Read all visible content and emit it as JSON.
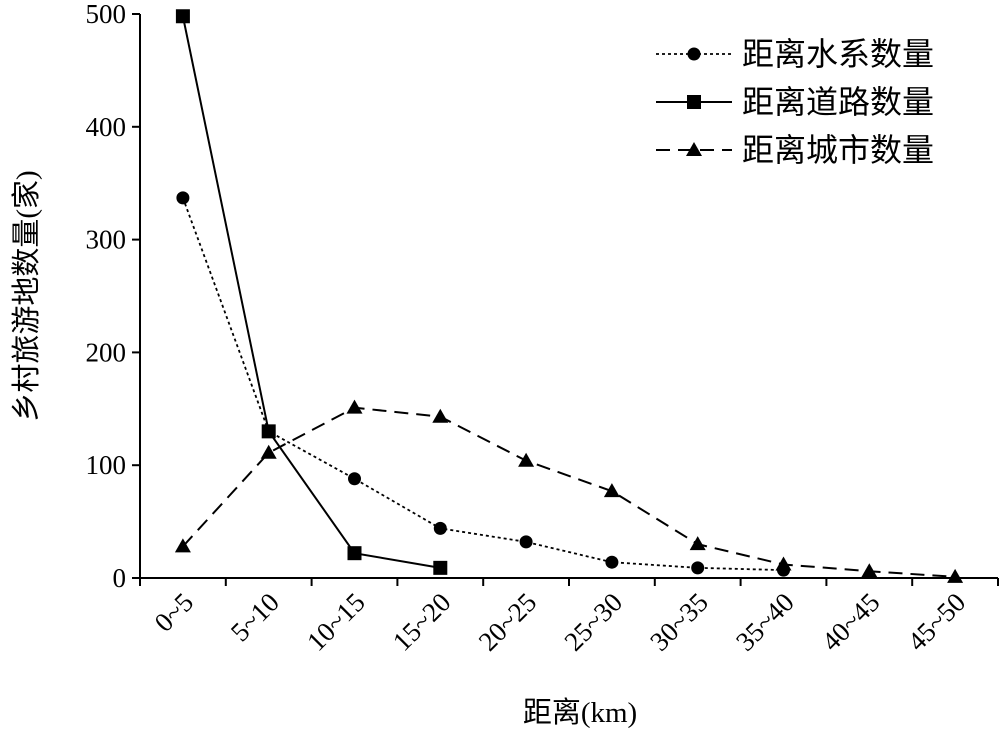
{
  "chart_data": {
    "type": "line",
    "title": "",
    "xlabel": "距离(km)",
    "ylabel": "乡村旅游地数量(家)",
    "categories": [
      "0~5",
      "5~10",
      "10~15",
      "15~20",
      "20~25",
      "25~30",
      "30~35",
      "35~40",
      "40~45",
      "45~50"
    ],
    "ylim": [
      0,
      500
    ],
    "yticks": [
      0,
      100,
      200,
      300,
      400,
      500
    ],
    "grid": false,
    "legend_position": "top-right",
    "series": [
      {
        "name": "距离水系数量",
        "values": [
          337,
          130,
          88,
          44,
          32,
          14,
          9,
          7,
          null,
          null
        ],
        "marker": "circle",
        "line_style": "dotted",
        "color": "#000000"
      },
      {
        "name": "距离道路数量",
        "values": [
          498,
          130,
          22,
          9,
          null,
          null,
          null,
          null,
          null,
          null
        ],
        "marker": "square",
        "line_style": "solid",
        "color": "#000000"
      },
      {
        "name": "距离城市数量",
        "values": [
          28,
          111,
          151,
          143,
          104,
          77,
          30,
          12,
          6,
          1
        ],
        "marker": "triangle",
        "line_style": "dashed",
        "color": "#000000"
      }
    ]
  }
}
